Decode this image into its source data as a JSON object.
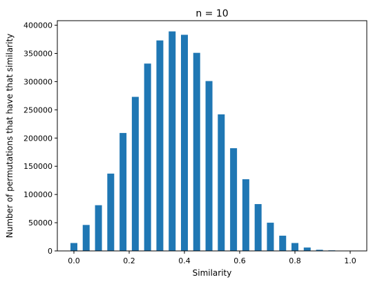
{
  "chart_data": {
    "type": "bar",
    "title": "n = 10",
    "xlabel": "Similarity",
    "ylabel": "Number of permutations that have that similarity",
    "x": [
      0.0,
      0.0444,
      0.0889,
      0.1333,
      0.1778,
      0.2222,
      0.2667,
      0.3111,
      0.3556,
      0.4,
      0.4444,
      0.4889,
      0.5333,
      0.5778,
      0.6222,
      0.6667,
      0.7111,
      0.7556,
      0.8,
      0.8444,
      0.8889,
      0.9333,
      0.9778,
      1.0
    ],
    "values": [
      14000,
      46000,
      81000,
      137000,
      209000,
      273000,
      332000,
      373000,
      389000,
      383000,
      351000,
      301000,
      242000,
      182000,
      127000,
      83000,
      50000,
      27000,
      14000,
      6000,
      2000,
      1000,
      0,
      0
    ],
    "xlim": [
      -0.06,
      1.06
    ],
    "ylim": [
      0,
      408000
    ],
    "xticks": [
      "0.0",
      "0.2",
      "0.4",
      "0.6",
      "0.8",
      "1.0"
    ],
    "yticks": [
      "0",
      "50000",
      "100000",
      "150000",
      "200000",
      "250000",
      "300000",
      "350000",
      "400000"
    ],
    "bar_color": "#1f77b4",
    "grid": false,
    "legend": "none"
  }
}
